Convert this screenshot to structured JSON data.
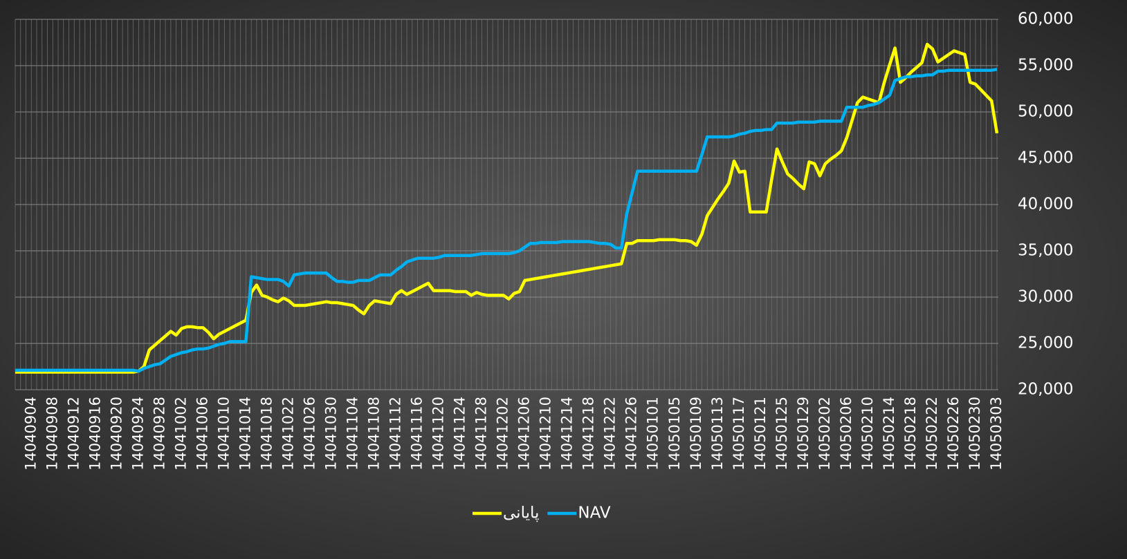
{
  "chart_data": {
    "type": "line",
    "categories": [
      null,
      null,
      null,
      "14040904",
      null,
      null,
      null,
      "14040908",
      null,
      null,
      null,
      "14040912",
      null,
      null,
      null,
      "14040916",
      null,
      null,
      null,
      "14040920",
      null,
      null,
      null,
      "14040924",
      null,
      null,
      null,
      "14040928",
      null,
      null,
      null,
      "14041002",
      null,
      null,
      null,
      "14041006",
      null,
      null,
      null,
      "14041010",
      null,
      null,
      null,
      "14041014",
      null,
      null,
      null,
      "14041018",
      null,
      null,
      null,
      "14041022",
      null,
      null,
      null,
      "14041026",
      null,
      null,
      null,
      "14041030",
      null,
      null,
      null,
      "14041104",
      null,
      null,
      null,
      "14041108",
      null,
      null,
      null,
      "14041112",
      null,
      null,
      null,
      "14041116",
      null,
      null,
      null,
      "14041120",
      null,
      null,
      null,
      "14041124",
      null,
      null,
      null,
      "14041128",
      null,
      null,
      null,
      "14041202",
      null,
      null,
      null,
      "14041206",
      null,
      null,
      null,
      "14041210",
      null,
      null,
      null,
      "14041214",
      null,
      null,
      null,
      "14041218",
      null,
      null,
      null,
      "14041222",
      null,
      null,
      null,
      "14041226",
      null,
      null,
      null,
      "14050101",
      null,
      null,
      null,
      "14050105",
      null,
      null,
      null,
      "14050109",
      null,
      null,
      null,
      "14050113",
      null,
      null,
      null,
      "14050117",
      null,
      null,
      null,
      "14050121",
      null,
      null,
      null,
      "14050125",
      null,
      null,
      null,
      "14050129",
      null,
      null,
      null,
      "14050202",
      null,
      null,
      null,
      "14050206",
      null,
      null,
      null,
      "14050210",
      null,
      null,
      null,
      "14050214",
      null,
      null,
      null,
      "14050218",
      null,
      null,
      null,
      "14050222",
      null,
      null,
      null,
      "14050226",
      null,
      null,
      null,
      "14050230",
      null,
      null,
      null,
      "14050303"
    ],
    "series": [
      {
        "name": "پایانی",
        "color": "#ffff00",
        "values": [
          21900,
          21900,
          21900,
          21900,
          21900,
          21900,
          21900,
          21900,
          21900,
          21900,
          21900,
          21900,
          21900,
          21900,
          21900,
          21900,
          21900,
          21900,
          21900,
          21900,
          21900,
          21900,
          21900,
          22000,
          22500,
          24300,
          24800,
          25300,
          25800,
          26300,
          25900,
          26600,
          26800,
          26800,
          26700,
          26700,
          26200,
          25500,
          26000,
          26300,
          26600,
          26900,
          27200,
          27500,
          30500,
          31300,
          30200,
          30000,
          29700,
          29500,
          29900,
          29600,
          29100,
          29100,
          29100,
          29200,
          29300,
          29400,
          29500,
          29400,
          29400,
          29300,
          29200,
          29100,
          28600,
          28200,
          29100,
          29600,
          29500,
          29400,
          29300,
          30300,
          30700,
          30300,
          30600,
          30900,
          31200,
          31500,
          30700,
          30700,
          30700,
          30700,
          30600,
          30600,
          30600,
          30200,
          30500,
          30300,
          30200,
          30200,
          30200,
          30200,
          29800,
          30400,
          30600,
          31800,
          31900,
          32000,
          32100,
          32200,
          32300,
          32400,
          32500,
          32600,
          32700,
          32800,
          32900,
          33000,
          33100,
          33200,
          33300,
          33400,
          33500,
          33600,
          35800,
          35800,
          36100,
          36100,
          36100,
          36100,
          36200,
          36200,
          36200,
          36200,
          36100,
          36100,
          36000,
          35600,
          36800,
          38800,
          39700,
          40600,
          41400,
          42300,
          44700,
          43500,
          43600,
          39200,
          39200,
          39200,
          39200,
          42700,
          46000,
          44600,
          43300,
          42800,
          42200,
          41700,
          44600,
          44400,
          43100,
          44400,
          44900,
          45300,
          45800,
          47200,
          49100,
          51000,
          51600,
          51400,
          51200,
          51000,
          53200,
          55100,
          56900,
          53200,
          53700,
          54300,
          54800,
          55300,
          57300,
          56800,
          55400,
          55800,
          56200,
          56600,
          56400,
          56200,
          53200,
          53000,
          52400,
          51800,
          51200,
          47700
        ]
      },
      {
        "name": "NAV",
        "color": "#00b0f0",
        "values": [
          22100,
          22100,
          22100,
          22100,
          22100,
          22100,
          22100,
          22100,
          22100,
          22100,
          22100,
          22100,
          22100,
          22100,
          22100,
          22100,
          22100,
          22100,
          22100,
          22100,
          22100,
          22100,
          22100,
          22000,
          22300,
          22500,
          22700,
          22800,
          23200,
          23600,
          23800,
          24000,
          24100,
          24300,
          24400,
          24400,
          24500,
          24700,
          24900,
          25000,
          25200,
          25200,
          25200,
          25200,
          32200,
          32100,
          32000,
          31900,
          31900,
          31900,
          31700,
          31200,
          32400,
          32500,
          32600,
          32600,
          32600,
          32600,
          32600,
          32100,
          31700,
          31700,
          31600,
          31600,
          31800,
          31800,
          31800,
          32100,
          32400,
          32400,
          32400,
          32900,
          33300,
          33800,
          34000,
          34200,
          34200,
          34200,
          34200,
          34300,
          34500,
          34500,
          34500,
          34500,
          34500,
          34500,
          34600,
          34700,
          34700,
          34700,
          34700,
          34700,
          34700,
          34800,
          35000,
          35400,
          35800,
          35800,
          35900,
          35900,
          35900,
          35900,
          36000,
          36000,
          36000,
          36000,
          36000,
          36000,
          35900,
          35800,
          35800,
          35700,
          35300,
          35300,
          39000,
          41300,
          43600,
          43600,
          43600,
          43600,
          43600,
          43600,
          43600,
          43600,
          43600,
          43600,
          43600,
          43600,
          45400,
          47300,
          47300,
          47300,
          47300,
          47300,
          47400,
          47600,
          47700,
          47900,
          48000,
          48000,
          48100,
          48100,
          48800,
          48800,
          48800,
          48800,
          48900,
          48900,
          48900,
          48900,
          49000,
          49000,
          49000,
          49000,
          49000,
          50500,
          50500,
          50500,
          50500,
          50700,
          50800,
          51000,
          51400,
          51800,
          53400,
          53600,
          53800,
          53800,
          53900,
          53900,
          54000,
          54000,
          54400,
          54400,
          54500,
          54500,
          54500,
          54500,
          54500,
          54500,
          54500,
          54500,
          54500,
          54600
        ]
      }
    ],
    "ylim": [
      20000,
      60000
    ],
    "yticks": [
      {
        "value": 20000,
        "label": "20,000"
      },
      {
        "value": 25000,
        "label": "25,000"
      },
      {
        "value": 30000,
        "label": "30,000"
      },
      {
        "value": 35000,
        "label": "35,000"
      },
      {
        "value": 40000,
        "label": "40,000"
      },
      {
        "value": 45000,
        "label": "45,000"
      },
      {
        "value": 50000,
        "label": "50,000"
      },
      {
        "value": 55000,
        "label": "55,000"
      },
      {
        "value": 60000,
        "label": "60,000"
      }
    ],
    "grid": true,
    "legend": "bottom"
  }
}
